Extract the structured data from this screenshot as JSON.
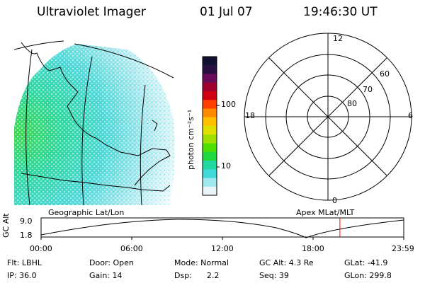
{
  "header": {
    "title": "Ultraviolet Imager",
    "date": "01 Jul 07",
    "time": "19:46:30 UT"
  },
  "colorbar": {
    "unit_label": "photon cm⁻²s⁻¹",
    "tick_labels": [
      "100",
      "10"
    ],
    "colors": [
      "#101030",
      "#2a1040",
      "#6a0a5a",
      "#a00030",
      "#d00010",
      "#ff4000",
      "#ff8c00",
      "#ffc000",
      "#e0e000",
      "#a0e000",
      "#50e000",
      "#20d840",
      "#20d8a0",
      "#40d8d8",
      "#a0e8f0",
      "#e8f4f8"
    ]
  },
  "polar_plot": {
    "mlt_labels": {
      "top": "12",
      "left": "18",
      "right": "6",
      "bottom": "0"
    },
    "lat_labels": [
      "60",
      "70",
      "80"
    ]
  },
  "altitude_plot": {
    "ylabel": "GC Alt",
    "ytick_labels": [
      "9.0",
      "1.8"
    ],
    "xtick_labels": [
      "00:00",
      "06:00",
      "12:00",
      "18:00",
      "23:59"
    ],
    "left_title": "Geographic Lat/Lon",
    "right_title": "Apex  MLat/MLT",
    "marker_color": "#ff0000",
    "marker_time_fraction": 0.824
  },
  "footer": {
    "filter": "Flt: LBHL",
    "door": "Door: Open",
    "mode": "Mode: Normal",
    "gc_alt": "GC Alt: 4.3 Re",
    "glat": "GLat: -41.9",
    "ip": "IP: 36.0",
    "gain": "Gain: 14",
    "dsp": "Dsp:      2.2",
    "seq": "Seq: 39",
    "glon": "GLon: 299.8"
  }
}
